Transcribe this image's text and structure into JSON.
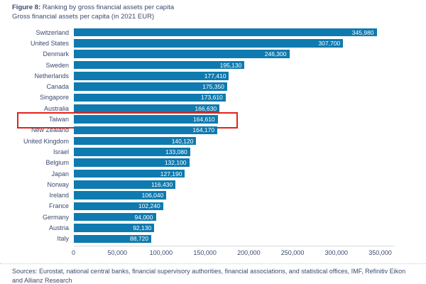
{
  "header": {
    "figure_label": "Figure 8:",
    "title": " Ranking by gross financial assets per capita",
    "subtitle": "Gross financial assets per capita (in 2021 EUR)"
  },
  "chart_data": {
    "type": "bar",
    "orientation": "horizontal",
    "title": "Figure 8: Ranking by gross financial assets per capita",
    "subtitle": "Gross financial assets per capita (in 2021 EUR)",
    "xlabel": "",
    "ylabel": "",
    "xlim": [
      0,
      350000
    ],
    "grid": false,
    "legend": "none",
    "categories": [
      "Switzerland",
      "United States",
      "Denmark",
      "Sweden",
      "Netherlands",
      "Canada",
      "Singapore",
      "Australia",
      "Taiwan",
      "New Zealand",
      "United Kingdom",
      "Israel",
      "Belgium",
      "Japan",
      "Norway",
      "Ireland",
      "France",
      "Germany",
      "Austria",
      "Italy"
    ],
    "values": [
      345980,
      307700,
      246300,
      195130,
      177410,
      175350,
      173610,
      166630,
      164610,
      164170,
      140120,
      133080,
      132100,
      127190,
      116430,
      106040,
      102240,
      94000,
      92130,
      88720
    ],
    "x_ticks": [
      "0",
      "50,000",
      "100,000",
      "150,000",
      "200,000",
      "250,000",
      "300,000",
      "350,000"
    ],
    "highlighted_category": "Taiwan",
    "bar_color": "#0f7aaf",
    "value_label_color": "#ffffff",
    "highlight_border_color": "#e32219",
    "text_color": "#3d4a6e"
  },
  "footer": {
    "sources": "Sources: Eurostat, national central banks, financial supervisory authorities, financial associations, and statistical offices, IMF, Refinitiv Eikon and Allianz Research"
  }
}
